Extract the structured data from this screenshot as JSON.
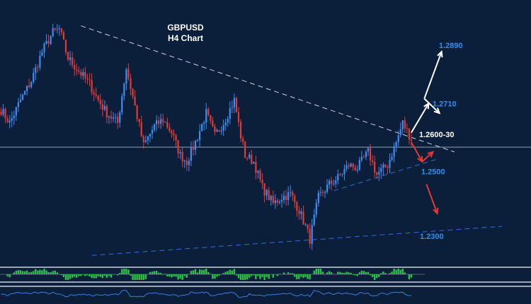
{
  "chart_data": {
    "type": "candlestick",
    "title": "GBPUSD",
    "subtitle": "H4 Chart",
    "colors": {
      "background": "#0b1f3a",
      "bull_candle": "#3d8df5",
      "bear_candle": "#e53935",
      "level_label": "#2e8ff0",
      "current_label": "#ffffff",
      "projection_up": "#ffffff",
      "projection_down": "#e53935",
      "trendline_upper": "#c9d2de",
      "trendline_lower": "#2e6fd6",
      "horizontal_line": "#8fa0b4",
      "macd_bars": "#2fbf4a",
      "panel_separator": "#9aa6b2",
      "oscillator_line": "#3d7be0"
    },
    "price_levels": [
      {
        "label": "1.2890",
        "price": 1.289,
        "color": "#2e8ff0"
      },
      {
        "label": "1.2710",
        "price": 1.271,
        "color": "#2e8ff0"
      },
      {
        "label": "1.2600-30",
        "price": 1.2615,
        "color": "#ffffff"
      },
      {
        "label": "1.2500",
        "price": 1.25,
        "color": "#2e8ff0"
      },
      {
        "label": "1.2300",
        "price": 1.23,
        "color": "#2e8ff0"
      }
    ],
    "horizontal_line_price": 1.2575,
    "anchors": [
      [
        0,
        1.269
      ],
      [
        4,
        1.265
      ],
      [
        9,
        1.272
      ],
      [
        14,
        1.278
      ],
      [
        19,
        1.287
      ],
      [
        24,
        1.293
      ],
      [
        27,
        1.294
      ],
      [
        31,
        1.285
      ],
      [
        36,
        1.281
      ],
      [
        41,
        1.277
      ],
      [
        45,
        1.272
      ],
      [
        49,
        1.268
      ],
      [
        54,
        1.265
      ],
      [
        58,
        1.282
      ],
      [
        62,
        1.27
      ],
      [
        66,
        1.258
      ],
      [
        71,
        1.264
      ],
      [
        75,
        1.266
      ],
      [
        79,
        1.262
      ],
      [
        83,
        1.255
      ],
      [
        86,
        1.253
      ],
      [
        90,
        1.259
      ],
      [
        95,
        1.268
      ],
      [
        99,
        1.261
      ],
      [
        103,
        1.265
      ],
      [
        108,
        1.272
      ],
      [
        111,
        1.261
      ],
      [
        113,
        1.255
      ],
      [
        117,
        1.253
      ],
      [
        121,
        1.245
      ],
      [
        126,
        1.24
      ],
      [
        130,
        1.242
      ],
      [
        134,
        1.243
      ],
      [
        138,
        1.238
      ],
      [
        141,
        1.233
      ],
      [
        143,
        1.229
      ],
      [
        147,
        1.242
      ],
      [
        152,
        1.246
      ],
      [
        156,
        1.248
      ],
      [
        161,
        1.252
      ],
      [
        165,
        1.251
      ],
      [
        170,
        1.256
      ],
      [
        174,
        1.249
      ],
      [
        179,
        1.252
      ],
      [
        183,
        1.259
      ],
      [
        186,
        1.265
      ],
      [
        190,
        1.26
      ]
    ],
    "trendlines": [
      {
        "name": "upper",
        "style": "dashed",
        "points": [
          [
            37,
            1.295
          ],
          [
            210,
            1.256
          ]
        ]
      },
      {
        "name": "lower",
        "style": "dashed",
        "points": [
          [
            154,
            1.244
          ],
          [
            203,
            1.254
          ]
        ]
      },
      {
        "name": "base",
        "style": "dashed",
        "points": [
          [
            42,
            1.224
          ],
          [
            232,
            1.233
          ]
        ]
      }
    ],
    "projections": [
      {
        "direction": "up",
        "points": [
          [
            190,
            1.262
          ],
          [
            198,
            1.271
          ]
        ]
      },
      {
        "direction": "up",
        "points": [
          [
            196,
            1.2725
          ],
          [
            204,
            1.287
          ]
        ]
      },
      {
        "direction": "up",
        "points": [
          [
            196,
            1.2725
          ],
          [
            203,
            1.268
          ]
        ]
      },
      {
        "direction": "down",
        "points": [
          [
            190,
            1.259
          ],
          [
            195,
            1.253
          ]
        ]
      },
      {
        "direction": "down",
        "points": [
          [
            195,
            1.253
          ],
          [
            200,
            1.256
          ]
        ]
      },
      {
        "direction": "down",
        "points": [
          [
            197,
            1.246
          ],
          [
            202,
            1.237
          ]
        ]
      }
    ],
    "indicators": [
      {
        "type": "histogram",
        "description": "MACD-style momentum histogram"
      },
      {
        "type": "line",
        "description": "oscillator line"
      }
    ],
    "grid": false,
    "legend": "none"
  }
}
